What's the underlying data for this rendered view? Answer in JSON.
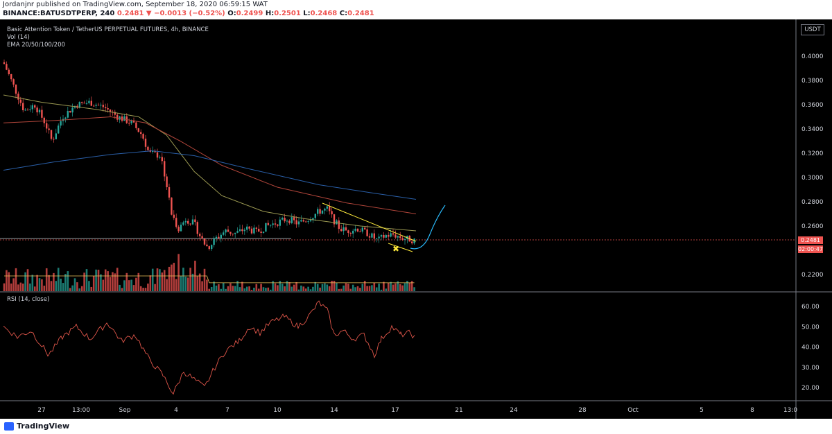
{
  "header": {
    "publisher_line": "Jordanjnr published on TradingView.com, September 18, 2020 06:59:15 WAT",
    "symbol": "BINANCE:BATUSDTPERP, 240",
    "last": "0.2481",
    "change": "▼ −0.0013 (−0.52%)",
    "open_label": "O:",
    "open": "0.2499",
    "high_label": "H:",
    "high": "0.2501",
    "low_label": "L:",
    "low": "0.2468",
    "close_label": "C:",
    "close": "0.2481"
  },
  "legend": {
    "title": "Basic Attention Token / TetherUS PERPETUAL FUTURES, 4h, BINANCE",
    "vol": "Vol (14)",
    "ema": "EMA 20/50/100/200",
    "rsi": "RSI (14, close)"
  },
  "price_axis": {
    "currency": "USDT",
    "ticks": [
      "0.4000",
      "0.3800",
      "0.3600",
      "0.3400",
      "0.3200",
      "0.3000",
      "0.2800",
      "0.2600",
      "0.2200"
    ],
    "tick_values": [
      0.4,
      0.38,
      0.36,
      0.34,
      0.32,
      0.3,
      0.28,
      0.26,
      0.22
    ],
    "current_price": "0.2481",
    "countdown": "02:00:47"
  },
  "rsi_axis": {
    "ticks": [
      "60.00",
      "50.00",
      "40.00",
      "30.00",
      "20.00"
    ],
    "tick_values": [
      60,
      50,
      40,
      30,
      20
    ]
  },
  "time_axis": {
    "labels": [
      "27",
      "13:00",
      "Sep",
      "4",
      "7",
      "10",
      "14",
      "17",
      "21",
      "24",
      "28",
      "Oct",
      "5",
      "8",
      "13:0"
    ]
  },
  "footer": {
    "brand": "TradingView"
  },
  "colors": {
    "up": "#26a69a",
    "down": "#ef5350",
    "ema20": "#f0c35a",
    "ema50": "#9c9a52",
    "ema100": "#b0453a",
    "ema200": "#2a5fa8",
    "rsi": "#e0564a",
    "projection": "#29b6f6",
    "trendline": "#ffeb3b"
  }
}
